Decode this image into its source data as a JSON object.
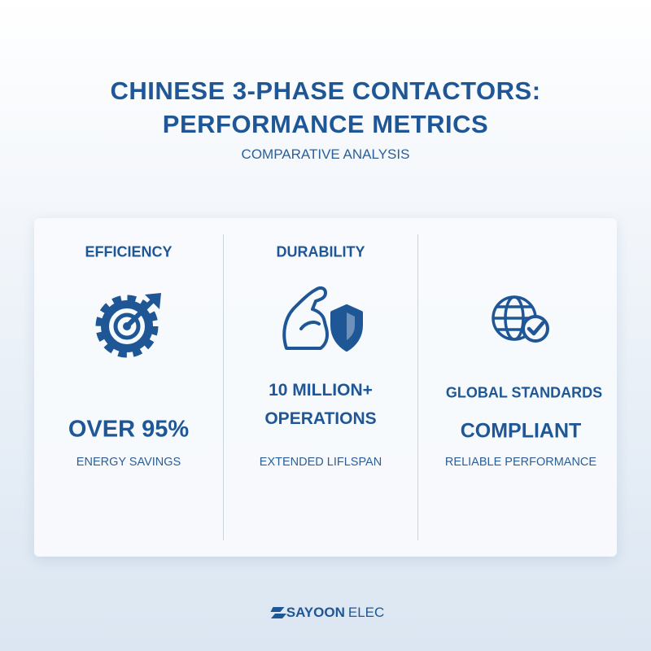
{
  "header": {
    "title_lines": [
      "CHINESE 3-PHASE CONTACTORS:",
      "PERFORMANCE METRICS"
    ],
    "subtitle": "COMPARATIVE ANALYSIS"
  },
  "cards": [
    {
      "heading": "EFFICIENCY",
      "metric_lines": [
        "OVER 95%"
      ],
      "caption": "ENERGY SAVINGS"
    },
    {
      "heading": "DURABILITY",
      "metric_lines": [
        "10 MILLION+",
        "OPERATIONS"
      ],
      "caption": "EXTENDED LIFLSPAN"
    },
    {
      "metric_lines": [
        "GLOBAL STANDARDS",
        "COMPLIANT"
      ],
      "caption": "RELIABLE PERFORMANCE"
    }
  ],
  "footer": {
    "brand": "SAYOON",
    "suffix": "ELEC"
  }
}
